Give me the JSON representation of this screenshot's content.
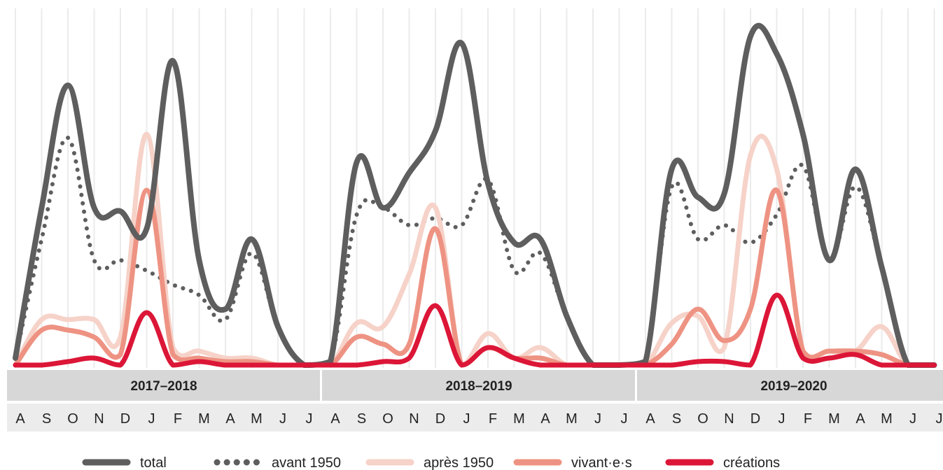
{
  "chart_data": {
    "type": "line",
    "ylim": [
      0,
      100
    ],
    "seasons": [
      "2017–2018",
      "2018–2019",
      "2019–2020"
    ],
    "months": [
      "A",
      "S",
      "O",
      "N",
      "D",
      "J",
      "F",
      "M",
      "A",
      "M",
      "J",
      "J"
    ],
    "series": [
      {
        "name": "total",
        "style": "solid",
        "color": "#5e5e5e",
        "width": 8,
        "values": [
          [
            2,
            45,
            80,
            45,
            44,
            39,
            87,
            30,
            16,
            36,
            11,
            0
          ],
          [
            1,
            58,
            45,
            55,
            67,
            92,
            52,
            35,
            36,
            14,
            0,
            0
          ],
          [
            1,
            56,
            48,
            49,
            94,
            89,
            66,
            30,
            56,
            28,
            0,
            0
          ]
        ]
      },
      {
        "name": "avant 1950",
        "style": "dotted",
        "color": "#5e5e5e",
        "width": 6,
        "values": [
          [
            2,
            36,
            65,
            30,
            30,
            27,
            23,
            20,
            13,
            32,
            11,
            0
          ],
          [
            1,
            43,
            45,
            40,
            42,
            40,
            53,
            27,
            32,
            14,
            0,
            0
          ],
          [
            1,
            51,
            36,
            40,
            35,
            43,
            57,
            30,
            51,
            28,
            0,
            0
          ]
        ]
      },
      {
        "name": "après 1950",
        "style": "solid",
        "color": "#f6d2c8",
        "width": 7,
        "values": [
          [
            0,
            13,
            13,
            13,
            8,
            66,
            5,
            4,
            2,
            2,
            0,
            0
          ],
          [
            0,
            12,
            11,
            26,
            45,
            0,
            9,
            2,
            5,
            0,
            0,
            0
          ],
          [
            0,
            12,
            14,
            5,
            60,
            56,
            4,
            4,
            4,
            11,
            0,
            0
          ]
        ]
      },
      {
        "name": "vivant·e·s",
        "style": "solid",
        "color": "#ee9383",
        "width": 7,
        "values": [
          [
            0,
            10,
            10,
            8,
            3,
            50,
            3,
            2,
            1,
            1,
            0,
            0
          ],
          [
            0,
            8,
            6,
            6,
            39,
            0,
            5,
            2,
            2,
            0,
            0,
            0
          ],
          [
            0,
            6,
            16,
            7,
            16,
            50,
            4,
            4,
            4,
            3,
            0,
            0
          ]
        ]
      },
      {
        "name": "créations",
        "style": "solid",
        "color": "#dc1637",
        "width": 7,
        "values": [
          [
            0,
            0,
            1,
            2,
            0,
            15,
            0,
            1,
            0,
            0,
            0,
            0
          ],
          [
            0,
            0,
            1,
            2,
            17,
            0,
            5,
            2,
            0,
            0,
            0,
            0
          ],
          [
            0,
            0,
            1,
            1,
            0,
            20,
            2,
            2,
            3,
            0,
            0,
            0
          ]
        ]
      }
    ]
  },
  "colors": {
    "grid": "#ebebeb",
    "season_band": "#d7d7d7",
    "month_band": "#ececec"
  }
}
